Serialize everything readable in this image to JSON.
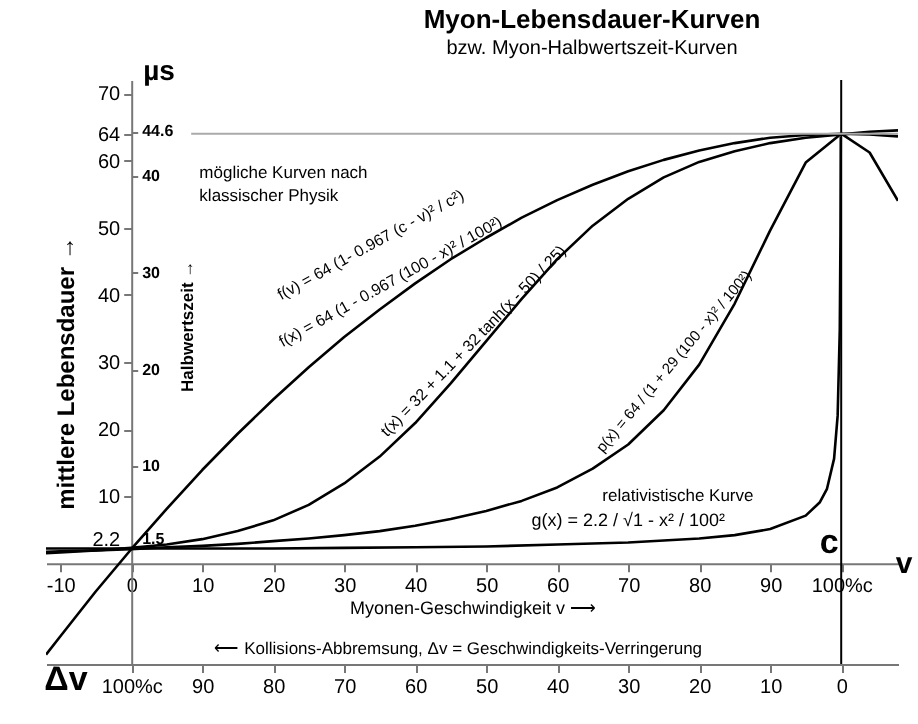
{
  "chart_data": {
    "type": "line",
    "title": "Myon-Lebensdauer-Kurven",
    "subtitle": "bzw. Myon-Halbwertszeit-Kurven",
    "xlabel": "Myonen-Geschwindigkeit v ⟶",
    "ylabel": "mittlere Lebensdauer →",
    "y2label": "Halbwertszeit →",
    "annotations": [
      "µs",
      "mögliche Kurven nach",
      "klassischer Physik",
      "f(v) = 64 (1- 0.967 (c - v)² / c²)",
      "relativistische Kurve",
      "c",
      "v",
      "Δv",
      "⟵ Kollisions-Abbremsung, Δv = Geschwindigkeits-Verringerung"
    ],
    "xlim": [
      -12,
      108
    ],
    "xticks": [
      -10,
      0,
      10,
      20,
      30,
      40,
      50,
      60,
      70,
      80,
      90,
      {
        "value": 100,
        "label": "100%c"
      }
    ],
    "ylim": [
      -15,
      72
    ],
    "yticks": [
      2.2,
      10,
      20,
      30,
      40,
      50,
      60,
      64,
      70
    ],
    "y2lim": [
      -10.4,
      49.9
    ],
    "y2ticks": [
      1.5,
      10,
      20,
      30,
      40,
      44.6
    ],
    "x2lim": [
      112,
      -8
    ],
    "x2ticks": [
      {
        "value": 100,
        "label": "100%c"
      },
      90,
      80,
      70,
      60,
      50,
      40,
      30,
      20,
      10,
      0
    ],
    "ref_lines": [
      {
        "axis": "x",
        "value": 100,
        "color": "#000000"
      },
      {
        "axis": "y",
        "value": 64,
        "color": "#aaaaaa"
      }
    ],
    "series": [
      {
        "name": "f(x) = 64 (1 - 0.967 (100 - x)² / 100²)",
        "color": "#000000",
        "x": [
          -12,
          -10,
          -5,
          0,
          5,
          10,
          15,
          20,
          25,
          30,
          35,
          40,
          45,
          50,
          55,
          60,
          65,
          70,
          75,
          80,
          85,
          90,
          95,
          100,
          104,
          108
        ],
        "values": [
          -13.6,
          -10.9,
          -4.2,
          2.1,
          8.1,
          13.9,
          19.3,
          24.4,
          29.2,
          33.7,
          37.8,
          41.7,
          45.3,
          48.5,
          51.5,
          54.1,
          56.4,
          58.4,
          60.1,
          61.5,
          62.6,
          63.4,
          63.8,
          64,
          63.9,
          63.6
        ]
      },
      {
        "name": "t(x) = 32 + 1.1 + 32 tanh(x - 50) / 25)",
        "color": "#000000",
        "x": [
          -12,
          -10,
          -5,
          0,
          5,
          10,
          15,
          20,
          25,
          30,
          35,
          40,
          45,
          50,
          55,
          60,
          65,
          70,
          75,
          80,
          85,
          90,
          95,
          100,
          104,
          108
        ],
        "values": [
          1.5,
          1.6,
          1.9,
          2.3,
          2.8,
          3.6,
          4.8,
          6.4,
          8.7,
          11.9,
          15.9,
          20.9,
          26.8,
          33.1,
          39.4,
          45.3,
          50.3,
          54.3,
          57.5,
          59.8,
          61.4,
          62.6,
          63.4,
          63.9,
          64.3,
          64.5
        ]
      },
      {
        "name": "p(x) = 64 / (1 + 29 (100 - x)² / 100²)",
        "color": "#000000",
        "x": [
          -12,
          -10,
          -5,
          0,
          5,
          10,
          15,
          20,
          25,
          30,
          35,
          40,
          45,
          50,
          55,
          60,
          65,
          70,
          75,
          80,
          85,
          90,
          95,
          100,
          104,
          108
        ],
        "values": [
          1.7,
          1.8,
          1.9,
          2.1,
          2.4,
          2.6,
          2.9,
          3.3,
          3.7,
          4.2,
          4.8,
          5.6,
          6.6,
          7.8,
          9.3,
          11.3,
          14.1,
          17.7,
          22.8,
          29.6,
          38.7,
          49.6,
          59.7,
          64,
          61.2,
          54.0
        ]
      },
      {
        "name": "g(x) = 2.2 / √1 - x² / 100²",
        "color": "#000000",
        "x": [
          -12,
          -10,
          0,
          10,
          20,
          30,
          40,
          50,
          60,
          70,
          80,
          85,
          90,
          95,
          97,
          98,
          99,
          99.5,
          99.8,
          99.9,
          99.94
        ],
        "values": [
          2.2,
          2.2,
          2.2,
          2.2,
          2.2,
          2.3,
          2.4,
          2.5,
          2.8,
          3.1,
          3.7,
          4.2,
          5.1,
          7.1,
          9.1,
          11.1,
          15.6,
          22,
          34.8,
          49.2,
          63.5
        ]
      }
    ]
  }
}
